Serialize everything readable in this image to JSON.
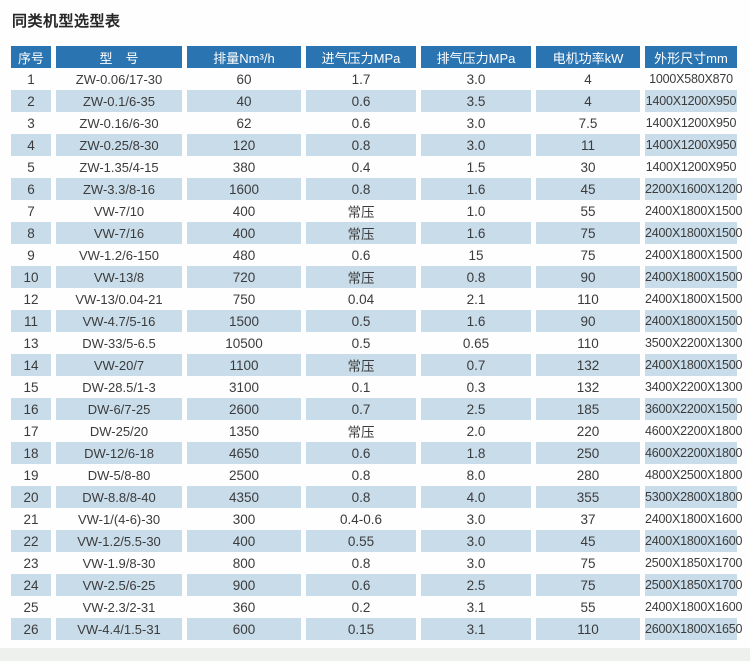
{
  "page": {
    "title": "同类机型选型表"
  },
  "table": {
    "columns": [
      "序号",
      "型　号",
      "排量Nm³/h",
      "进气压力MPa",
      "排气压力MPa",
      "电机功率kW",
      "外形尺寸mm"
    ],
    "rows": [
      [
        "1",
        "ZW-0.06/17-30",
        "60",
        "1.7",
        "3.0",
        "4",
        "1000X580X870"
      ],
      [
        "2",
        "ZW-0.1/6-35",
        "40",
        "0.6",
        "3.5",
        "4",
        "1400X1200X950"
      ],
      [
        "3",
        "ZW-0.16/6-30",
        "62",
        "0.6",
        "3.0",
        "7.5",
        "1400X1200X950"
      ],
      [
        "4",
        "ZW-0.25/8-30",
        "120",
        "0.8",
        "3.0",
        "11",
        "1400X1200X950"
      ],
      [
        "5",
        "ZW-1.35/4-15",
        "380",
        "0.4",
        "1.5",
        "30",
        "1400X1200X950"
      ],
      [
        "6",
        "ZW-3.3/8-16",
        "1600",
        "0.8",
        "1.6",
        "45",
        "2200X1600X1200"
      ],
      [
        "7",
        "VW-7/10",
        "400",
        "常压",
        "1.0",
        "55",
        "2400X1800X1500"
      ],
      [
        "8",
        "VW-7/16",
        "400",
        "常压",
        "1.6",
        "75",
        "2400X1800X1500"
      ],
      [
        "9",
        "VW-1.2/6-150",
        "480",
        "0.6",
        "15",
        "75",
        "2400X1800X1500"
      ],
      [
        "10",
        "VW-13/8",
        "720",
        "常压",
        "0.8",
        "90",
        "2400X1800X1500"
      ],
      [
        "12",
        "VW-13/0.04-21",
        "750",
        "0.04",
        "2.1",
        "110",
        "2400X1800X1500"
      ],
      [
        "11",
        "VW-4.7/5-16",
        "1500",
        "0.5",
        "1.6",
        "90",
        "2400X1800X1500"
      ],
      [
        "13",
        "DW-33/5-6.5",
        "10500",
        "0.5",
        "0.65",
        "110",
        "3500X2200X1300"
      ],
      [
        "14",
        "VW-20/7",
        "1100",
        "常压",
        "0.7",
        "132",
        "2400X1800X1500"
      ],
      [
        "15",
        "DW-28.5/1-3",
        "3100",
        "0.1",
        "0.3",
        "132",
        "3400X2200X1300"
      ],
      [
        "16",
        "DW-6/7-25",
        "2600",
        "0.7",
        "2.5",
        "185",
        "3600X2200X1500"
      ],
      [
        "17",
        "DW-25/20",
        "1350",
        "常压",
        "2.0",
        "220",
        "4600X2200X1800"
      ],
      [
        "18",
        "DW-12/6-18",
        "4650",
        "0.6",
        "1.8",
        "250",
        "4600X2200X1800"
      ],
      [
        "19",
        "DW-5/8-80",
        "2500",
        "0.8",
        "8.0",
        "280",
        "4800X2500X1800"
      ],
      [
        "20",
        "DW-8.8/8-40",
        "4350",
        "0.8",
        "4.0",
        "355",
        "5300X2800X1800"
      ],
      [
        "21",
        "VW-1/(4-6)-30",
        "300",
        "0.4-0.6",
        "3.0",
        "37",
        "2400X1800X1600"
      ],
      [
        "22",
        "VW-1.2/5.5-30",
        "400",
        "0.55",
        "3.0",
        "45",
        "2400X1800X1600"
      ],
      [
        "23",
        "VW-1.9/8-30",
        "800",
        "0.8",
        "3.0",
        "75",
        "2500X1850X1700"
      ],
      [
        "24",
        "VW-2.5/6-25",
        "900",
        "0.6",
        "2.5",
        "75",
        "2500X1850X1700"
      ],
      [
        "25",
        "VW-2.3/2-31",
        "360",
        "0.2",
        "3.1",
        "55",
        "2400X1800X1600"
      ],
      [
        "26",
        "VW-4.4/1.5-31",
        "600",
        "0.15",
        "3.1",
        "110",
        "2600X1800X1650"
      ]
    ]
  },
  "colors": {
    "header_bg": "#2b74b2",
    "header_text": "#ffffff",
    "row_even_bg": "#c9dcea",
    "row_odd_bg": "#fdfefd",
    "body_text": "#3b3b3b",
    "title_text": "#262626",
    "page_bg": "#fefefe",
    "footer_band_bg": "#edf0ec"
  }
}
